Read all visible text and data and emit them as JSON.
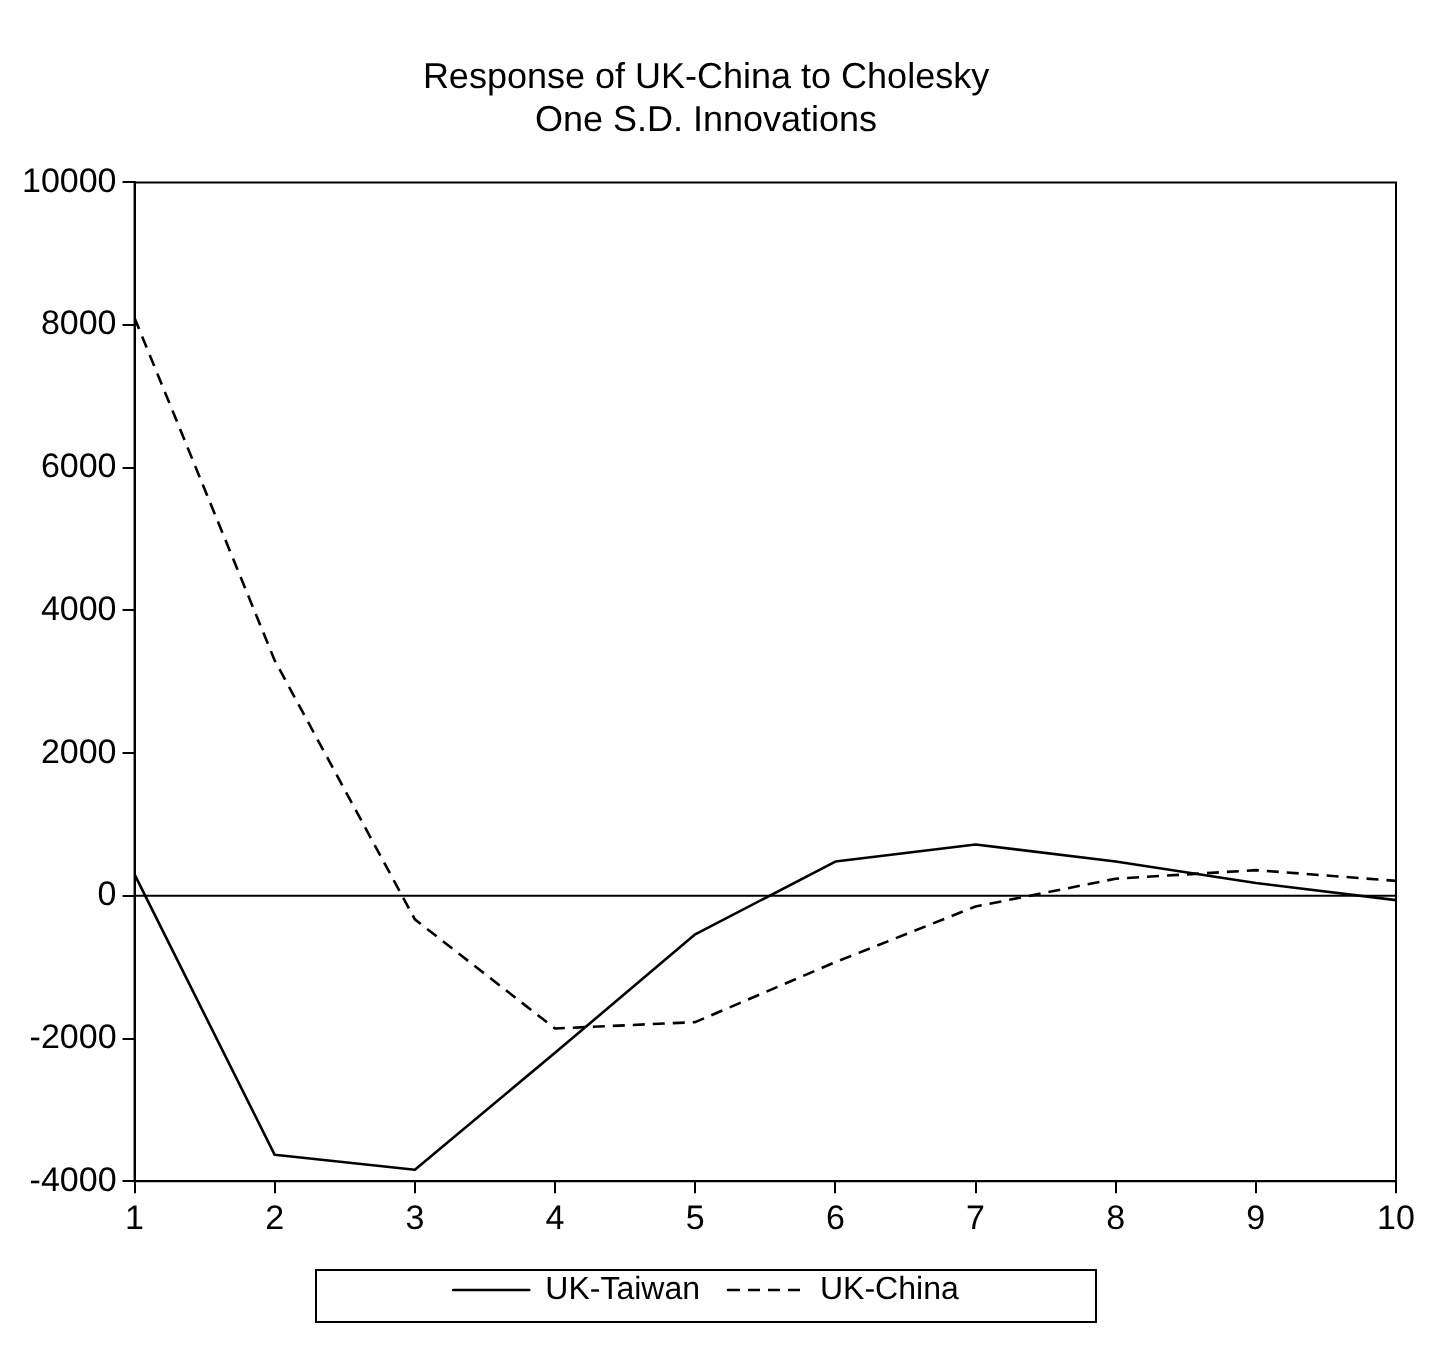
{
  "chart_data": {
    "type": "line",
    "title": "Response of UK-China to Cholesky\nOne S.D. Innovations",
    "x": [
      1,
      2,
      3,
      4,
      5,
      6,
      7,
      8,
      9,
      10
    ],
    "series": [
      {
        "name": "UK-Taiwan",
        "color": "#000000",
        "line_style": "solid",
        "values": [
          300,
          -3630,
          -3840,
          -2200,
          -540,
          480,
          720,
          480,
          180,
          -60
        ]
      },
      {
        "name": "UK-China",
        "color": "#000000",
        "line_style": "dashed",
        "values": [
          8100,
          3300,
          -330,
          -1860,
          -1770,
          -930,
          -150,
          240,
          360,
          210
        ]
      }
    ],
    "xlim": [
      1,
      10
    ],
    "xticks": [
      1,
      2,
      3,
      4,
      5,
      6,
      7,
      8,
      9,
      10
    ],
    "ylim": [
      -4000,
      10000
    ],
    "yticks": [
      -4000,
      -2000,
      0,
      2000,
      4000,
      6000,
      8000,
      10000
    ],
    "ref_lines": [
      {
        "axis": "y",
        "value": 0,
        "color": "#000000"
      }
    ],
    "grid": false,
    "legend": "bottom",
    "marker": "none"
  }
}
